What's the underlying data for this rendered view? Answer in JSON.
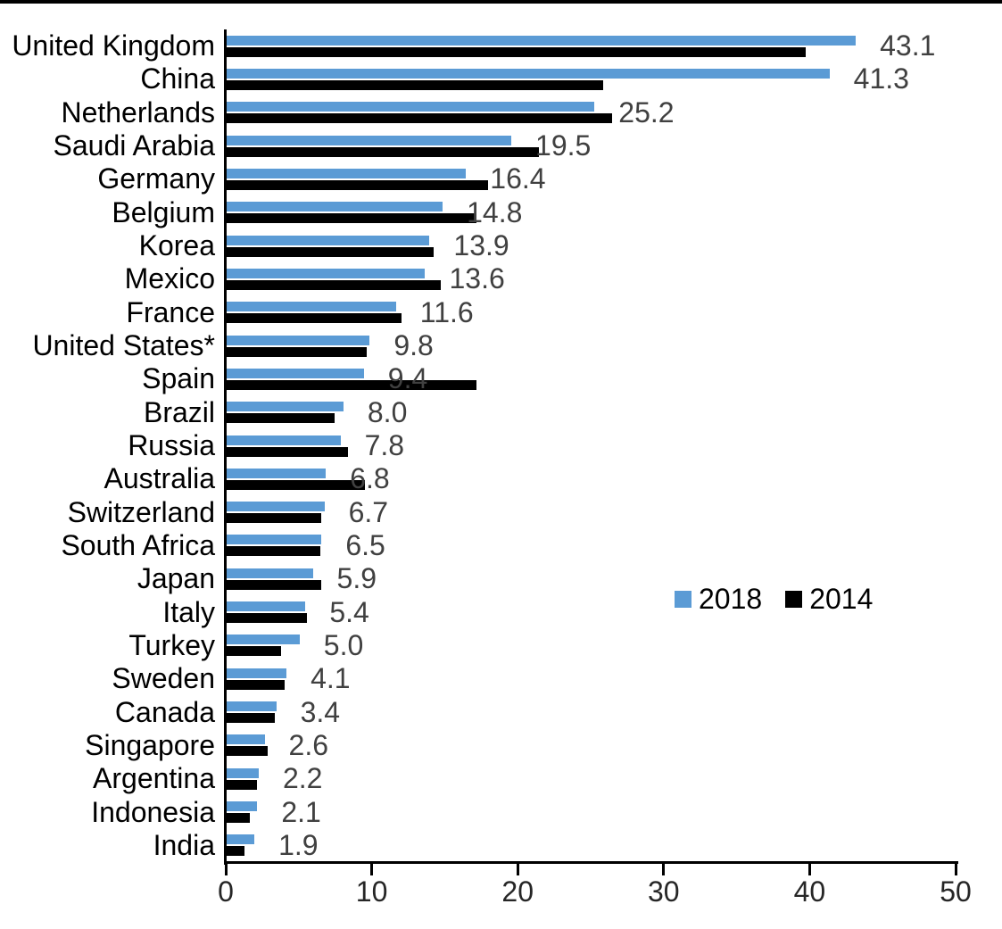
{
  "chart_data": {
    "type": "bar",
    "orientation": "horizontal",
    "title": "",
    "xlabel": "",
    "ylabel": "",
    "xlim": [
      0,
      50
    ],
    "x_ticks": [
      0,
      10,
      20,
      30,
      40,
      50
    ],
    "grid": false,
    "legend_position": "middle-right",
    "categories": [
      "United Kingdom",
      "China",
      "Netherlands",
      "Saudi Arabia",
      "Germany",
      "Belgium",
      "Korea",
      "Mexico",
      "France",
      "United States*",
      "Spain",
      "Brazil",
      "Russia",
      "Australia",
      "Switzerland",
      "South Africa",
      "Japan",
      "Italy",
      "Turkey",
      "Sweden",
      "Canada",
      "Singapore",
      "Argentina",
      "Indonesia",
      "India"
    ],
    "series": [
      {
        "name": "2018",
        "color": "#5B9BD5",
        "values": [
          43.1,
          41.3,
          25.2,
          19.5,
          16.4,
          14.8,
          13.9,
          13.6,
          11.6,
          9.8,
          9.4,
          8.0,
          7.8,
          6.8,
          6.7,
          6.5,
          5.9,
          5.4,
          5.0,
          4.1,
          3.4,
          2.6,
          2.2,
          2.1,
          1.9
        ]
      },
      {
        "name": "2014",
        "color": "#000000",
        "values": [
          39.7,
          25.8,
          26.4,
          21.4,
          17.9,
          17.1,
          14.2,
          14.7,
          12.0,
          9.6,
          17.1,
          7.4,
          8.3,
          9.5,
          6.5,
          6.4,
          6.5,
          5.5,
          3.7,
          4.0,
          3.3,
          2.8,
          2.1,
          1.6,
          1.2
        ]
      }
    ],
    "data_labels": [
      "43.1",
      "41.3",
      "25.2",
      "19.5",
      "16.4",
      "14.8",
      "13.9",
      "13.6",
      "11.6",
      "9.8",
      "9.4",
      "8.0",
      "7.8",
      "6.8",
      "6.7",
      "6.5",
      "5.9",
      "5.4",
      "5.0",
      "4.1",
      "3.4",
      "2.6",
      "2.2",
      "2.1",
      "1.9"
    ],
    "data_labels_series": "2018"
  },
  "colors": {
    "bar_2018": "#5B9BD5",
    "bar_2014": "#000000",
    "value_label_text": "#404040",
    "axis_tick_text": "#262626",
    "category_text": "#000000",
    "axis_line": "#000000"
  }
}
